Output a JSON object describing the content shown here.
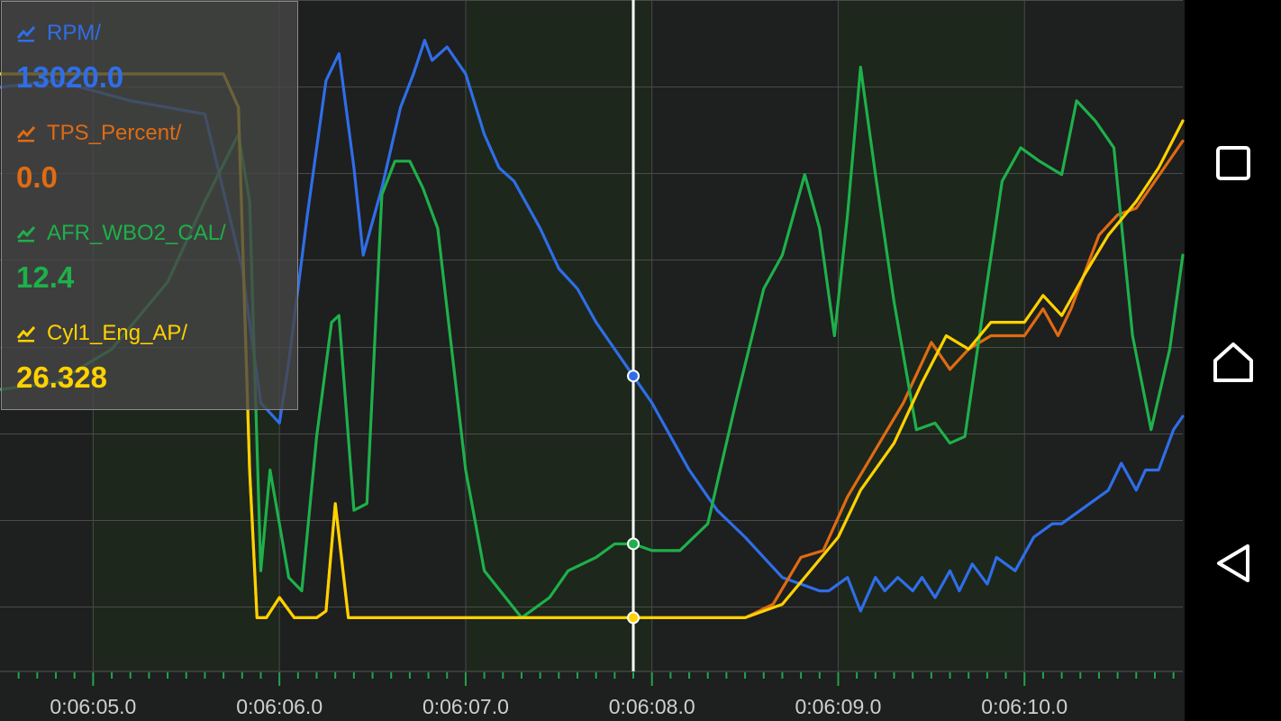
{
  "chart_data": {
    "type": "line",
    "title": "",
    "xlabel": "",
    "ylabel": "",
    "grid": true,
    "legend_placement": "top-left",
    "x_range": [
      4.5,
      10.85
    ],
    "x_ticks": [
      5.0,
      6.0,
      7.0,
      8.0,
      9.0,
      10.0
    ],
    "x_tick_labels": [
      "0:06:05.0",
      "0:06:06.0",
      "0:06:07.0",
      "0:06:08.0",
      "0:06:09.0",
      "0:06:10.0"
    ],
    "cursor_x": 7.9,
    "x_unit_note": "seconds after 0:06:00",
    "series": [
      {
        "name": "RPM/",
        "value": "13020.0",
        "color": "#2f6ee8",
        "points": [
          [
            4.5,
            87
          ],
          [
            4.8,
            88
          ],
          [
            5.2,
            85
          ],
          [
            5.6,
            83
          ],
          [
            5.8,
            60
          ],
          [
            5.9,
            40
          ],
          [
            6.0,
            37
          ],
          [
            6.05,
            46
          ],
          [
            6.15,
            68
          ],
          [
            6.25,
            88
          ],
          [
            6.32,
            92
          ],
          [
            6.4,
            75
          ],
          [
            6.45,
            62
          ],
          [
            6.55,
            72
          ],
          [
            6.65,
            84
          ],
          [
            6.72,
            89
          ],
          [
            6.78,
            94
          ],
          [
            6.82,
            91
          ],
          [
            6.9,
            93
          ],
          [
            7.0,
            89
          ],
          [
            7.1,
            80
          ],
          [
            7.18,
            75
          ],
          [
            7.26,
            73
          ],
          [
            7.4,
            66
          ],
          [
            7.5,
            60
          ],
          [
            7.6,
            57
          ],
          [
            7.7,
            52
          ],
          [
            7.8,
            48
          ],
          [
            7.9,
            44
          ],
          [
            8.0,
            40
          ],
          [
            8.1,
            35
          ],
          [
            8.2,
            30
          ],
          [
            8.35,
            24
          ],
          [
            8.5,
            20
          ],
          [
            8.6,
            17
          ],
          [
            8.7,
            14
          ],
          [
            8.8,
            13
          ],
          [
            8.9,
            12
          ],
          [
            8.95,
            12
          ],
          [
            9.05,
            14
          ],
          [
            9.12,
            9
          ],
          [
            9.2,
            14
          ],
          [
            9.25,
            12
          ],
          [
            9.32,
            14
          ],
          [
            9.4,
            12
          ],
          [
            9.45,
            14
          ],
          [
            9.52,
            11
          ],
          [
            9.6,
            15
          ],
          [
            9.65,
            12
          ],
          [
            9.72,
            16
          ],
          [
            9.8,
            13
          ],
          [
            9.85,
            17
          ],
          [
            9.95,
            15
          ],
          [
            10.05,
            20
          ],
          [
            10.15,
            22
          ],
          [
            10.2,
            22
          ],
          [
            10.3,
            24
          ],
          [
            10.45,
            27
          ],
          [
            10.52,
            31
          ],
          [
            10.6,
            27
          ],
          [
            10.65,
            30
          ],
          [
            10.72,
            30
          ],
          [
            10.8,
            36
          ],
          [
            10.85,
            38
          ]
        ]
      },
      {
        "name": "TPS_Percent/",
        "value": "0.0",
        "color": "#e06b12",
        "points": [
          [
            4.5,
            89
          ],
          [
            5.0,
            89
          ],
          [
            5.4,
            89
          ],
          [
            5.7,
            89
          ],
          [
            5.78,
            84
          ],
          [
            5.84,
            30
          ],
          [
            5.88,
            8
          ],
          [
            5.93,
            8
          ],
          [
            6.0,
            11
          ],
          [
            6.08,
            8
          ],
          [
            6.2,
            8
          ],
          [
            6.25,
            9
          ],
          [
            6.3,
            25
          ],
          [
            6.37,
            8
          ],
          [
            6.5,
            8
          ],
          [
            7.0,
            8
          ],
          [
            7.5,
            8
          ],
          [
            8.0,
            8
          ],
          [
            8.5,
            8
          ],
          [
            8.65,
            10
          ],
          [
            8.8,
            17
          ],
          [
            8.92,
            18
          ],
          [
            9.05,
            26
          ],
          [
            9.2,
            33
          ],
          [
            9.35,
            40
          ],
          [
            9.5,
            49
          ],
          [
            9.6,
            45
          ],
          [
            9.7,
            48
          ],
          [
            9.82,
            50
          ],
          [
            10.0,
            50
          ],
          [
            10.1,
            54
          ],
          [
            10.18,
            50
          ],
          [
            10.25,
            54
          ],
          [
            10.4,
            65
          ],
          [
            10.5,
            68
          ],
          [
            10.6,
            69
          ],
          [
            10.7,
            73
          ],
          [
            10.85,
            79
          ]
        ]
      },
      {
        "name": "AFR_WBO2_CAL/",
        "value": "12.4",
        "color": "#1eb04a",
        "points": [
          [
            4.5,
            42
          ],
          [
            4.8,
            43
          ],
          [
            5.1,
            48
          ],
          [
            5.4,
            58
          ],
          [
            5.6,
            70
          ],
          [
            5.78,
            80
          ],
          [
            5.84,
            70
          ],
          [
            5.9,
            15
          ],
          [
            5.95,
            30
          ],
          [
            6.05,
            14
          ],
          [
            6.12,
            12
          ],
          [
            6.2,
            35
          ],
          [
            6.28,
            52
          ],
          [
            6.32,
            53
          ],
          [
            6.4,
            24
          ],
          [
            6.47,
            25
          ],
          [
            6.55,
            71
          ],
          [
            6.62,
            76
          ],
          [
            6.7,
            76
          ],
          [
            6.77,
            72
          ],
          [
            6.85,
            66
          ],
          [
            7.0,
            30
          ],
          [
            7.1,
            15
          ],
          [
            7.3,
            8
          ],
          [
            7.45,
            11
          ],
          [
            7.55,
            15
          ],
          [
            7.7,
            17
          ],
          [
            7.8,
            19
          ],
          [
            7.9,
            19
          ],
          [
            8.0,
            18
          ],
          [
            8.15,
            18
          ],
          [
            8.3,
            22
          ],
          [
            8.45,
            40
          ],
          [
            8.6,
            57
          ],
          [
            8.7,
            62
          ],
          [
            8.78,
            70
          ],
          [
            8.82,
            74
          ],
          [
            8.9,
            66
          ],
          [
            8.98,
            50
          ],
          [
            9.05,
            68
          ],
          [
            9.12,
            90
          ],
          [
            9.2,
            74
          ],
          [
            9.3,
            55
          ],
          [
            9.42,
            36
          ],
          [
            9.52,
            37
          ],
          [
            9.6,
            34
          ],
          [
            9.68,
            35
          ],
          [
            9.8,
            58
          ],
          [
            9.88,
            73
          ],
          [
            9.98,
            78
          ],
          [
            10.08,
            76
          ],
          [
            10.2,
            74
          ],
          [
            10.28,
            85
          ],
          [
            10.38,
            82
          ],
          [
            10.48,
            78
          ],
          [
            10.58,
            50
          ],
          [
            10.68,
            36
          ],
          [
            10.78,
            48
          ],
          [
            10.85,
            62
          ]
        ]
      },
      {
        "name": "Cyl1_Eng_AP/",
        "value": "26.328",
        "color": "#ffd200",
        "points": [
          [
            4.5,
            89
          ],
          [
            5.0,
            89
          ],
          [
            5.4,
            89
          ],
          [
            5.7,
            89
          ],
          [
            5.78,
            84
          ],
          [
            5.84,
            30
          ],
          [
            5.88,
            8
          ],
          [
            5.93,
            8
          ],
          [
            6.0,
            11
          ],
          [
            6.08,
            8
          ],
          [
            6.2,
            8
          ],
          [
            6.25,
            9
          ],
          [
            6.3,
            25
          ],
          [
            6.37,
            8
          ],
          [
            6.5,
            8
          ],
          [
            7.0,
            8
          ],
          [
            7.5,
            8
          ],
          [
            8.0,
            8
          ],
          [
            8.5,
            8
          ],
          [
            8.7,
            10
          ],
          [
            8.85,
            15
          ],
          [
            9.0,
            20
          ],
          [
            9.12,
            27
          ],
          [
            9.3,
            34
          ],
          [
            9.45,
            43
          ],
          [
            9.58,
            50
          ],
          [
            9.7,
            48
          ],
          [
            9.82,
            52
          ],
          [
            10.0,
            52
          ],
          [
            10.1,
            56
          ],
          [
            10.2,
            53
          ],
          [
            10.32,
            59
          ],
          [
            10.45,
            65
          ],
          [
            10.6,
            70
          ],
          [
            10.72,
            75
          ],
          [
            10.85,
            82
          ]
        ]
      }
    ]
  },
  "navigation": {
    "recents_icon": "square-icon",
    "home_icon": "home-icon",
    "back_icon": "triangle-back-icon"
  }
}
